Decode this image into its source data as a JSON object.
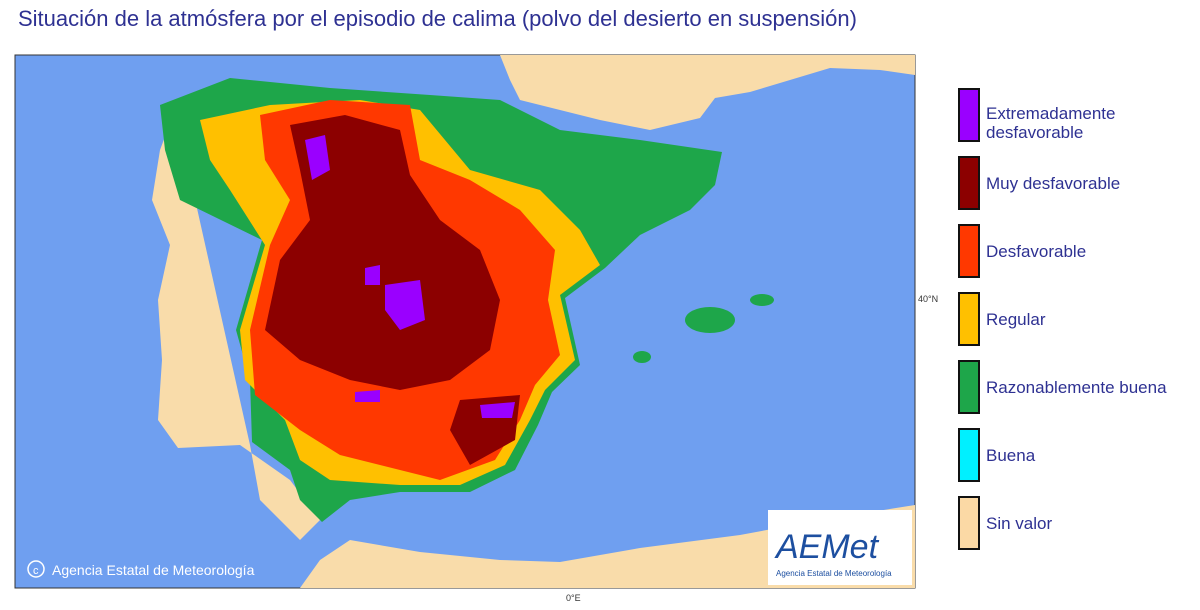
{
  "title": "Situación de la atmósfera por el episodio de calima (polvo del desierto en suspensión)",
  "map": {
    "lat_label": "40°N",
    "lon_label": "0°E",
    "copyright": "Agencia Estatal de Meteorología",
    "logo": {
      "name": "AEMet",
      "subtitle": "Agencia Estatal de Meteorología"
    },
    "sea_color": "#6f9ff0",
    "land_color": "#f9dcaa"
  },
  "legend": [
    {
      "label": "Extremadamente desfavorable",
      "color": "#9a00ff"
    },
    {
      "label": "Muy desfavorable",
      "color": "#8c0000"
    },
    {
      "label": "Desfavorable",
      "color": "#ff3800"
    },
    {
      "label": "Regular",
      "color": "#ffc000"
    },
    {
      "label": "Razonablemente buena",
      "color": "#1ea64a"
    },
    {
      "label": "Buena",
      "color": "#00f0ff"
    },
    {
      "label": "Sin valor",
      "color": "#fbd9a5"
    }
  ]
}
